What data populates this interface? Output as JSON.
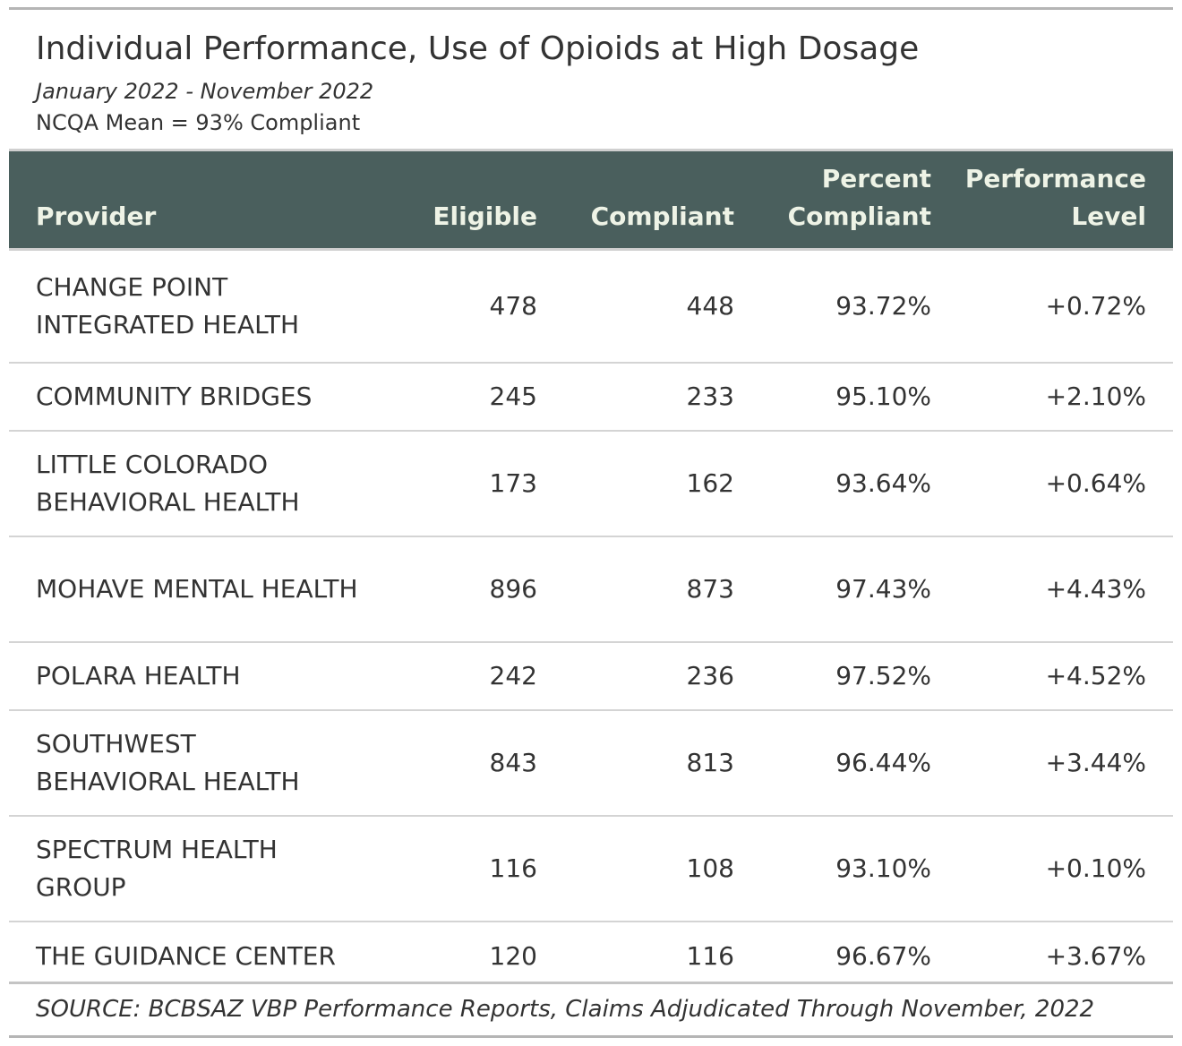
{
  "title": "Individual Performance, Use of Opioids at High Dosage",
  "subtitle": "January 2022 - November 2022",
  "note": "NCQA Mean = 93% Compliant",
  "columns": {
    "provider": "Provider",
    "eligible": "Eligible",
    "compliant": "Compliant",
    "percent_compliant_line1": "Percent",
    "percent_compliant_line2": "Compliant",
    "performance_level_line1": "Performance",
    "performance_level_line2": "Level"
  },
  "rows": [
    {
      "provider": "CHANGE POINT INTEGRATED HEALTH",
      "eligible": "478",
      "compliant": "448",
      "percent_compliant": "93.72%",
      "performance_level": "+0.72%"
    },
    {
      "provider": "COMMUNITY BRIDGES",
      "eligible": "245",
      "compliant": "233",
      "percent_compliant": "95.10%",
      "performance_level": "+2.10%"
    },
    {
      "provider": "LITTLE COLORADO BEHAVIORAL HEALTH",
      "eligible": "173",
      "compliant": "162",
      "percent_compliant": "93.64%",
      "performance_level": "+0.64%"
    },
    {
      "provider": "MOHAVE MENTAL HEALTH",
      "eligible": "896",
      "compliant": "873",
      "percent_compliant": "97.43%",
      "performance_level": "+4.43%"
    },
    {
      "provider": "POLARA HEALTH",
      "eligible": "242",
      "compliant": "236",
      "percent_compliant": "97.52%",
      "performance_level": "+4.52%"
    },
    {
      "provider": "SOUTHWEST BEHAVIORAL HEALTH",
      "eligible": "843",
      "compliant": "813",
      "percent_compliant": "96.44%",
      "performance_level": "+3.44%"
    },
    {
      "provider": "SPECTRUM HEALTH GROUP",
      "eligible": "116",
      "compliant": "108",
      "percent_compliant": "93.10%",
      "performance_level": "+0.10%"
    },
    {
      "provider": "THE GUIDANCE CENTER",
      "eligible": "120",
      "compliant": "116",
      "percent_compliant": "96.67%",
      "performance_level": "+3.67%"
    }
  ],
  "source": "SOURCE: BCBSAZ VBP Performance Reports, Claims Adjudicated Through November, 2022",
  "colors": {
    "header_bg": "#4a5f5d",
    "header_text": "#eef3e6",
    "body_text": "#333333",
    "rule": "#d4d4d4"
  }
}
